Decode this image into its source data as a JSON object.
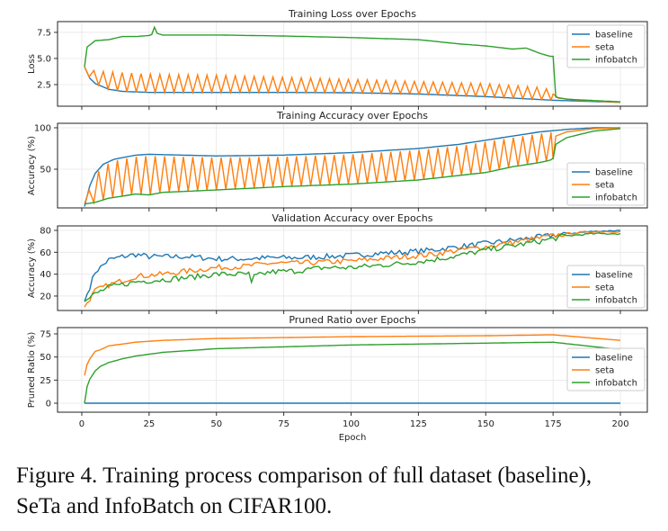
{
  "colors": {
    "baseline": "#1f77b4",
    "seta": "#ff7f0e",
    "infobatch": "#2ca02c"
  },
  "caption": {
    "line1": "Figure 4. Training process comparison of full dataset (baseline),",
    "line2": "SeTa and InfoBatch on CIFAR100."
  },
  "chart_data": [
    {
      "type": "line",
      "title": "Training Loss over Epochs",
      "ylabel": "Loss",
      "xlabel": "",
      "xlim": [
        -9,
        210
      ],
      "ylim": [
        0.43,
        8.53
      ],
      "yticks": [
        2.5,
        5.0,
        7.5
      ],
      "ytick_labels": [
        "2.5",
        "5.0",
        "7.5"
      ],
      "legend": "top-right",
      "grid": true,
      "series": [
        {
          "name": "baseline",
          "x": [
            1,
            3,
            5,
            10,
            15,
            25,
            50,
            75,
            100,
            125,
            150,
            175,
            200
          ],
          "y": [
            4.2,
            3.1,
            2.6,
            2.05,
            1.85,
            1.75,
            1.75,
            1.75,
            1.72,
            1.6,
            1.35,
            1.0,
            0.8
          ]
        },
        {
          "name": "seta",
          "sawtooth": true,
          "cycle_length": 3.5,
          "sawtooth_end": 175,
          "upper": {
            "x": [
              1,
              5,
              25,
              50,
              100,
              150,
              172,
              175
            ],
            "y": [
              4.2,
              3.8,
              3.5,
              3.4,
              3.0,
              2.6,
              2.2,
              1.6
            ]
          },
          "lower_follows": "baseline",
          "tail": {
            "x": [
              175,
              177,
              185,
              200
            ],
            "y": [
              1.6,
              1.2,
              1.0,
              0.8
            ]
          }
        },
        {
          "name": "infobatch",
          "x": [
            1,
            2,
            5,
            10,
            15,
            20,
            25,
            26,
            27,
            28,
            30,
            50,
            75,
            100,
            125,
            140,
            150,
            160,
            165,
            170,
            174,
            175,
            176,
            180,
            200
          ],
          "y": [
            4.2,
            6.1,
            6.7,
            6.8,
            7.1,
            7.1,
            7.2,
            7.3,
            8.0,
            7.4,
            7.25,
            7.25,
            7.15,
            7.0,
            6.8,
            6.4,
            6.2,
            5.9,
            6.0,
            5.5,
            5.2,
            5.2,
            1.3,
            1.1,
            0.85
          ]
        }
      ]
    },
    {
      "type": "line",
      "title": "Training Accuracy over Epochs",
      "ylabel": "Accuracy (%)",
      "xlabel": "",
      "xlim": [
        -9,
        210
      ],
      "ylim": [
        3.3,
        105.4
      ],
      "yticks": [
        50,
        100
      ],
      "ytick_labels": [
        "50",
        "100"
      ],
      "legend": "bottom-right",
      "grid": true,
      "series": [
        {
          "name": "baseline",
          "x": [
            1,
            3,
            5,
            8,
            12,
            20,
            25,
            50,
            75,
            100,
            125,
            140,
            150,
            160,
            170,
            180,
            190,
            200
          ],
          "y": [
            5,
            30,
            45,
            56,
            62,
            67,
            68,
            66,
            67,
            70,
            75,
            80,
            85,
            90,
            95,
            98,
            100,
            100
          ]
        },
        {
          "name": "seta",
          "sawtooth": true,
          "cycle_length": 3.5,
          "sawtooth_end": 175,
          "upper_follows": "baseline",
          "upper_offset": -2,
          "lower_follows": "infobatch",
          "tail": {
            "x": [
              175,
              176,
              180,
              190,
              200
            ],
            "y": [
              62,
              90,
              95,
              99,
              100
            ]
          }
        },
        {
          "name": "infobatch",
          "x": [
            1,
            5,
            10,
            20,
            25,
            30,
            50,
            75,
            100,
            125,
            150,
            160,
            170,
            174,
            175,
            176,
            180,
            190,
            200
          ],
          "y": [
            8,
            10,
            15,
            20,
            19,
            22,
            25,
            29,
            32,
            37,
            46,
            53,
            58,
            61,
            63,
            80,
            88,
            96,
            99
          ]
        }
      ]
    },
    {
      "type": "line",
      "title": "Validation Accuracy over Epochs",
      "ylabel": "Accuracy (%)",
      "xlabel": "",
      "xlim": [
        -9,
        210
      ],
      "ylim": [
        6.8,
        84.1
      ],
      "yticks": [
        20,
        40,
        60,
        80
      ],
      "ytick_labels": [
        "20",
        "40",
        "60",
        "80"
      ],
      "legend": "bottom-right",
      "grid": true,
      "noisy": true,
      "series": [
        {
          "name": "baseline",
          "x": [
            1,
            5,
            10,
            15,
            20,
            25,
            30,
            40,
            50,
            60,
            70,
            80,
            90,
            100,
            110,
            120,
            130,
            140,
            150,
            160,
            170,
            180,
            190,
            200
          ],
          "y": [
            15,
            42,
            53,
            56,
            58,
            56,
            56,
            56,
            54,
            54,
            55,
            55,
            56,
            57,
            59,
            60,
            62,
            65,
            68,
            71,
            74,
            77,
            79,
            80
          ]
        },
        {
          "name": "seta",
          "x": [
            1,
            5,
            10,
            20,
            30,
            40,
            50,
            60,
            70,
            80,
            90,
            100,
            110,
            120,
            130,
            140,
            150,
            160,
            170,
            180,
            190,
            200
          ],
          "y": [
            10,
            25,
            30,
            38,
            40,
            43,
            46,
            47,
            50,
            50,
            51,
            52,
            54,
            56,
            58,
            62,
            65,
            69,
            73,
            77,
            79,
            79
          ]
        },
        {
          "name": "infobatch",
          "x": [
            1,
            5,
            10,
            20,
            30,
            40,
            50,
            60,
            62,
            63,
            64,
            70,
            80,
            90,
            100,
            110,
            120,
            130,
            140,
            150,
            160,
            170,
            180,
            190,
            200
          ],
          "y": [
            15,
            22,
            28,
            33,
            35,
            37,
            40,
            40,
            40,
            31,
            38,
            42,
            43,
            46,
            46,
            48,
            50,
            53,
            57,
            62,
            66,
            70,
            75,
            77,
            77
          ]
        }
      ]
    },
    {
      "type": "line",
      "title": "Pruned Ratio over Epochs",
      "ylabel": "Pruned Ratio (%)",
      "xlabel": "Epoch",
      "xlim": [
        -9,
        210
      ],
      "ylim": [
        -9.7,
        81.8
      ],
      "yticks": [
        0,
        25,
        50,
        75
      ],
      "ytick_labels": [
        "0",
        "25",
        "50",
        "75"
      ],
      "xticks": [
        0,
        25,
        50,
        75,
        100,
        125,
        150,
        175,
        200
      ],
      "xtick_labels": [
        "0",
        "25",
        "50",
        "75",
        "100",
        "125",
        "150",
        "175",
        "200"
      ],
      "legend": "right",
      "grid": true,
      "series": [
        {
          "name": "baseline",
          "x": [
            1,
            200
          ],
          "y": [
            0,
            0
          ]
        },
        {
          "name": "seta",
          "x": [
            1,
            2,
            3,
            5,
            7,
            10,
            15,
            20,
            30,
            50,
            75,
            100,
            150,
            175,
            200
          ],
          "y": [
            30,
            42,
            48,
            56,
            58,
            62,
            64,
            66,
            68,
            70,
            71,
            72,
            73,
            74,
            68
          ]
        },
        {
          "name": "infobatch",
          "x": [
            1,
            2,
            3,
            5,
            7,
            10,
            15,
            20,
            30,
            50,
            75,
            100,
            150,
            175,
            200
          ],
          "y": [
            0,
            18,
            26,
            35,
            40,
            44,
            48,
            51,
            55,
            59,
            61,
            63,
            65,
            66,
            58
          ]
        }
      ]
    }
  ]
}
